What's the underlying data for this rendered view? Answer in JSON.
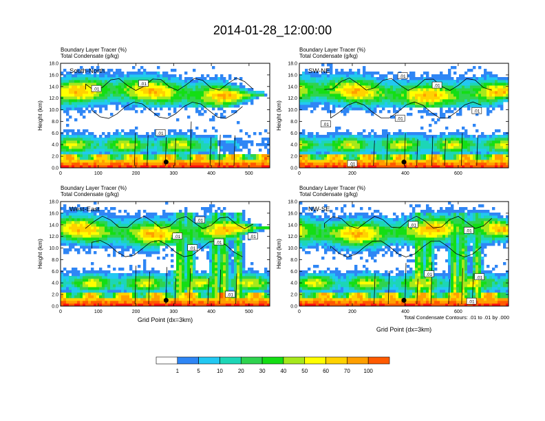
{
  "title": "2014-01-28_12:00:00",
  "footnote": "Total Condensate Contours: .01 to .01 by .000",
  "colors": {
    "bins": [
      "#ffffff",
      "#2f86f5",
      "#22c8f2",
      "#1dd6b6",
      "#2fd34f",
      "#14de14",
      "#a6e81c",
      "#ffff00",
      "#ffd200",
      "#ff9f00",
      "#ff5a00",
      "#ff1010"
    ],
    "contour": "#000000",
    "dot": "#000000"
  },
  "chart_data": [
    {
      "type": "heatmap",
      "panel_label": "South-North",
      "title_lines": [
        "Boundary Layer Tracer   (%)",
        "Total Condensate   (g/kg)"
      ],
      "ylabel": "Height (km)",
      "xlabel": "",
      "xlim": [
        0,
        555
      ],
      "ylim": [
        0,
        18
      ],
      "xticks": [
        "0",
        "100",
        "200",
        "300",
        "400",
        "500"
      ],
      "yticks": [
        "0.0",
        "2.0",
        "4.0",
        "6.0",
        "8.0",
        "10.0",
        "12.0",
        "14.0",
        "16.0",
        "18.0"
      ],
      "marker": {
        "x": 280,
        "y": 1.0
      },
      "contour_labels": [
        {
          "text": ".01",
          "x": 95,
          "y": 13.6
        },
        {
          "text": ".01",
          "x": 220,
          "y": 14.5
        },
        {
          "text": ".01",
          "x": 265,
          "y": 6.0
        }
      ]
    },
    {
      "type": "heatmap",
      "panel_label": "SW-NE",
      "title_lines": [
        "Boundary Layer Tracer   (%)",
        "Total Condensate   (g/kg)"
      ],
      "ylabel": "Height (km)",
      "xlabel": "",
      "xlim": [
        0,
        790
      ],
      "ylim": [
        0,
        18
      ],
      "xticks": [
        "0",
        "200",
        "400",
        "600"
      ],
      "yticks": [
        "0.0",
        "2.0",
        "4.0",
        "6.0",
        "8.0",
        "10.0",
        "12.0",
        "14.0",
        "16.0",
        "18.0"
      ],
      "marker": {
        "x": 395,
        "y": 1.0
      },
      "contour_labels": [
        {
          "text": ".01",
          "x": 390,
          "y": 15.8
        },
        {
          "text": ".01",
          "x": 520,
          "y": 14.2
        },
        {
          "text": ".01",
          "x": 380,
          "y": 8.5
        },
        {
          "text": ".01",
          "x": 100,
          "y": 7.5
        },
        {
          "text": ".01",
          "x": 670,
          "y": 9.8
        },
        {
          "text": ".01",
          "x": 200,
          "y": 0.7
        }
      ]
    },
    {
      "type": "heatmap",
      "panel_label": "West-East",
      "title_lines": [
        "Boundary Layer Tracer   (%)",
        "Total Condensate   (g/kg)"
      ],
      "ylabel": "Height (km)",
      "xlabel": "Grid Point (dx=3km)",
      "xlim": [
        0,
        555
      ],
      "ylim": [
        0,
        18
      ],
      "xticks": [
        "0",
        "100",
        "200",
        "300",
        "400",
        "500"
      ],
      "yticks": [
        "0.0",
        "2.0",
        "4.0",
        "6.0",
        "8.0",
        "10.0",
        "12.0",
        "14.0",
        "16.0",
        "18.0"
      ],
      "marker": {
        "x": 280,
        "y": 1.0
      },
      "contour_labels": [
        {
          "text": ".01",
          "x": 370,
          "y": 14.8
        },
        {
          "text": ".01",
          "x": 310,
          "y": 12.0
        },
        {
          "text": ".01",
          "x": 420,
          "y": 11.0
        },
        {
          "text": ".01",
          "x": 510,
          "y": 12.0
        },
        {
          "text": ".01",
          "x": 350,
          "y": 10.0
        },
        {
          "text": ".01",
          "x": 450,
          "y": 2.0
        }
      ]
    },
    {
      "type": "heatmap",
      "panel_label": "NW-SE",
      "title_lines": [
        "Boundary Layer Tracer   (%)",
        "Total Condensate   (g/kg)"
      ],
      "ylabel": "Height (km)",
      "xlabel": "",
      "xlim": [
        0,
        790
      ],
      "ylim": [
        0,
        18
      ],
      "xticks": [
        "0",
        "200",
        "400",
        "600"
      ],
      "yticks": [
        "0.0",
        "2.0",
        "4.0",
        "6.0",
        "8.0",
        "10.0",
        "12.0",
        "14.0",
        "16.0",
        "18.0"
      ],
      "marker": {
        "x": 395,
        "y": 1.0
      },
      "contour_labels": [
        {
          "text": ".01",
          "x": 430,
          "y": 14.0
        },
        {
          "text": ".01",
          "x": 640,
          "y": 13.0
        },
        {
          "text": ".01",
          "x": 490,
          "y": 5.5
        },
        {
          "text": ".01",
          "x": 680,
          "y": 5.0
        },
        {
          "text": ".01",
          "x": 650,
          "y": 0.8
        }
      ]
    }
  ],
  "colorbar": {
    "labels": [
      "1",
      "5",
      "10",
      "20",
      "30",
      "40",
      "50",
      "60",
      "70",
      "100"
    ]
  }
}
